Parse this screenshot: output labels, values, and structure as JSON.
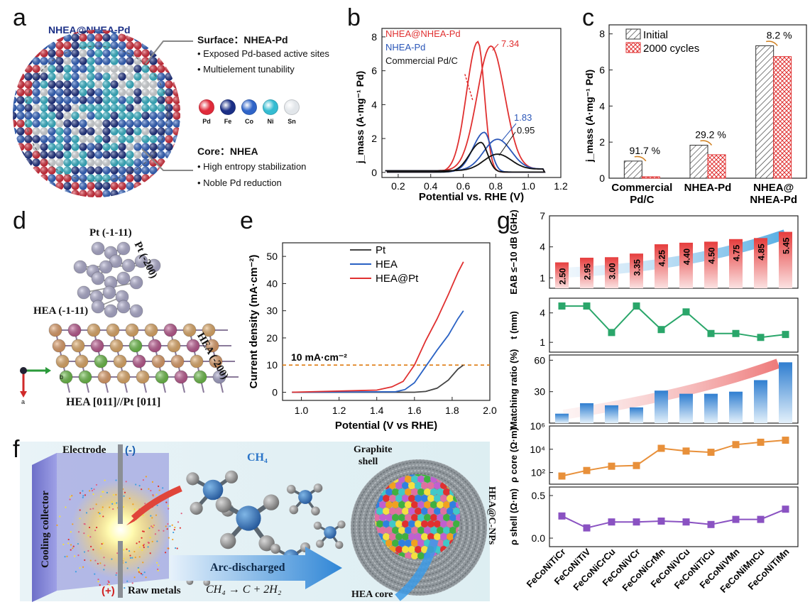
{
  "panel_labels": {
    "a": "a",
    "b": "b",
    "c": "c",
    "d": "d",
    "e": "e",
    "f": "f",
    "g": "g"
  },
  "panel_a": {
    "title": "NHEA@NHEA-Pd",
    "surface_title": "Surface：NHEA-Pd",
    "surface_bullets": [
      "• Exposed Pd-based active sites",
      "• Multielement tunability"
    ],
    "core_title": "Core：NHEA",
    "core_bullets": [
      "• High entropy stabilization",
      "• Noble Pd reduction"
    ],
    "legend": [
      {
        "label": "Pd",
        "color": "#e02a3a"
      },
      {
        "label": "Fe",
        "color": "#1b2f86"
      },
      {
        "label": "Co",
        "color": "#2f64c8"
      },
      {
        "label": "Ni",
        "color": "#34bcd2"
      },
      {
        "label": "Sn",
        "color": "#e2e6ea"
      }
    ]
  },
  "panel_d": {
    "pt_111": "Pt (-1-11)",
    "pt_200": "Pt (-200)",
    "hea_111": "HEA (-1-11)",
    "hea_200": "HEA (-200)",
    "relation": "HEA [011]//Pt [011]",
    "axis_b": "b",
    "axis_a": "a"
  },
  "panel_f": {
    "electrode": "Electrode",
    "minus": "(-)",
    "plus": "(+)",
    "cooling": "Cooling collector",
    "raw_metals": "Raw metals",
    "ch4": "CH₄",
    "arc": "Arc-discharged",
    "reaction": "CH₄ → C + 2H₂",
    "graphite": "Graphite",
    "shell": "shell",
    "hea_core": "HEA core",
    "side_label": "HEA@C-NPs"
  },
  "chart_data": [
    {
      "id": "b",
      "type": "line",
      "xlabel": "Potential vs. RHE (V)",
      "ylabel": "j_mass (A·mg⁻¹ Pd)",
      "xlim": [
        0.1,
        1.2
      ],
      "ylim": [
        -0.3,
        8.5
      ],
      "xticks": [
        "0.2",
        "0.4",
        "0.6",
        "0.8",
        "1.0",
        "1.2"
      ],
      "yticks": [
        "0",
        "2",
        "4",
        "6",
        "8"
      ],
      "legend": [
        "NHEA@NHEA-Pd",
        "NHEA-Pd",
        "Commercial Pd/C"
      ],
      "annotations": {
        "red_peak": "7.34",
        "blue_peak": "1.83",
        "black_peak": "0.95"
      },
      "series": [
        {
          "name": "NHEA@NHEA-Pd",
          "color": "#e03030",
          "forward_peak": [
            0.77,
            7.34
          ],
          "backward_peak": [
            0.69,
            7.7
          ]
        },
        {
          "name": "NHEA-Pd",
          "color": "#2a56b8",
          "forward_peak": [
            0.81,
            1.83
          ],
          "backward_peak": [
            0.73,
            2.35
          ]
        },
        {
          "name": "Commercial Pd/C",
          "color": "#111111",
          "forward_peak": [
            0.81,
            0.95
          ],
          "backward_peak": [
            0.71,
            1.75
          ]
        }
      ]
    },
    {
      "id": "c",
      "type": "bar",
      "ylabel": "j_mass (A·mg⁻¹ Pd)",
      "ylim": [
        0,
        8.5
      ],
      "yticks": [
        "0",
        "2",
        "4",
        "6",
        "8"
      ],
      "categories": [
        "Commercial Pd/C",
        "NHEA-Pd",
        "NHEA@ NHEA-Pd"
      ],
      "series": [
        {
          "name": "Initial",
          "values": [
            0.95,
            1.83,
            7.34
          ]
        },
        {
          "name": "2000 cycles",
          "values": [
            0.08,
            1.3,
            6.74
          ]
        }
      ],
      "loss_labels": [
        "91.7 %",
        "29.2 %",
        "8.2 %"
      ]
    },
    {
      "id": "e",
      "type": "line",
      "xlabel": "Potential (V vs RHE)",
      "ylabel": "Current density (mA·cm⁻²)",
      "xlim": [
        0.9,
        2.0
      ],
      "ylim": [
        -3,
        55
      ],
      "xticks": [
        "1.0",
        "1.2",
        "1.4",
        "1.6",
        "1.8",
        "2.0"
      ],
      "yticks": [
        "0",
        "10",
        "20",
        "30",
        "40",
        "50"
      ],
      "reference_line": {
        "y": 10,
        "label": "10 mA·cm⁻²"
      },
      "series": [
        {
          "name": "Pt",
          "color": "#444444",
          "x": [
            0.95,
            1.6,
            1.66,
            1.72,
            1.78,
            1.83,
            1.86
          ],
          "y": [
            0,
            0,
            0.3,
            1.5,
            4.5,
            8.5,
            10
          ]
        },
        {
          "name": "HEA",
          "color": "#2a62c4",
          "x": [
            0.95,
            1.5,
            1.55,
            1.6,
            1.66,
            1.72,
            1.78,
            1.83,
            1.86
          ],
          "y": [
            0,
            0.2,
            1.0,
            3.5,
            9.5,
            15.5,
            21,
            27,
            30
          ]
        },
        {
          "name": "HEA@Pt",
          "color": "#e03030",
          "x": [
            0.95,
            1.4,
            1.48,
            1.54,
            1.6,
            1.66,
            1.72,
            1.78,
            1.83,
            1.86
          ],
          "y": [
            0,
            0.8,
            2,
            4,
            10,
            19,
            27,
            36,
            44,
            48
          ]
        }
      ]
    },
    {
      "id": "g",
      "type": "bar",
      "categories": [
        "FeCoNiTiCr",
        "FeCoNiTiV",
        "FeCoNiCrCu",
        "FeCoNiVCr",
        "FeCoNiCrMn",
        "FeCoNiVCu",
        "FeCoNiTiCu",
        "FeCoNiVMn",
        "FeCoNiMnCu",
        "FeCoNiTiMn"
      ],
      "subplots": [
        {
          "ylabel": "EAB ≤−10 dB (GHz)",
          "type": "bar",
          "ylim": [
            0,
            7
          ],
          "yticks": [
            "1",
            "4",
            "7"
          ],
          "values": [
            2.5,
            2.95,
            3.0,
            3.35,
            4.25,
            4.4,
            4.5,
            4.75,
            4.85,
            5.45
          ],
          "value_labels": [
            "2.50",
            "2.95",
            "3.00",
            "3.35",
            "4.25",
            "4.40",
            "4.50",
            "4.75",
            "4.85",
            "5.45"
          ]
        },
        {
          "ylabel": "t (mm)",
          "type": "line",
          "ylim": [
            0,
            5.5
          ],
          "yticks": [
            "1",
            "4"
          ],
          "values": [
            4.7,
            4.7,
            2.0,
            4.7,
            2.3,
            4.1,
            1.9,
            1.9,
            1.5,
            1.8
          ]
        },
        {
          "ylabel": "Matching ratio (%)",
          "type": "bar",
          "ylim": [
            0,
            65
          ],
          "yticks": [
            "30",
            "60"
          ],
          "values": [
            9,
            19,
            17,
            15,
            31,
            28,
            28,
            30,
            41,
            58
          ]
        },
        {
          "ylabel": "ρ core (Ω·m)",
          "type": "line",
          "log": true,
          "ylim": [
            1,
            6
          ],
          "yticks": [
            "10²",
            "10⁴",
            "10⁶"
          ],
          "values": [
            50,
            150,
            350,
            400,
            12000,
            7000,
            5500,
            25000,
            40000,
            60000
          ]
        },
        {
          "ylabel": "ρ shell (Ω·m)",
          "type": "line",
          "ylim": [
            -0.1,
            0.6
          ],
          "yticks": [
            "0.0",
            "0.5"
          ],
          "values": [
            0.26,
            0.12,
            0.19,
            0.19,
            0.2,
            0.19,
            0.16,
            0.22,
            0.22,
            0.34
          ]
        }
      ]
    }
  ]
}
